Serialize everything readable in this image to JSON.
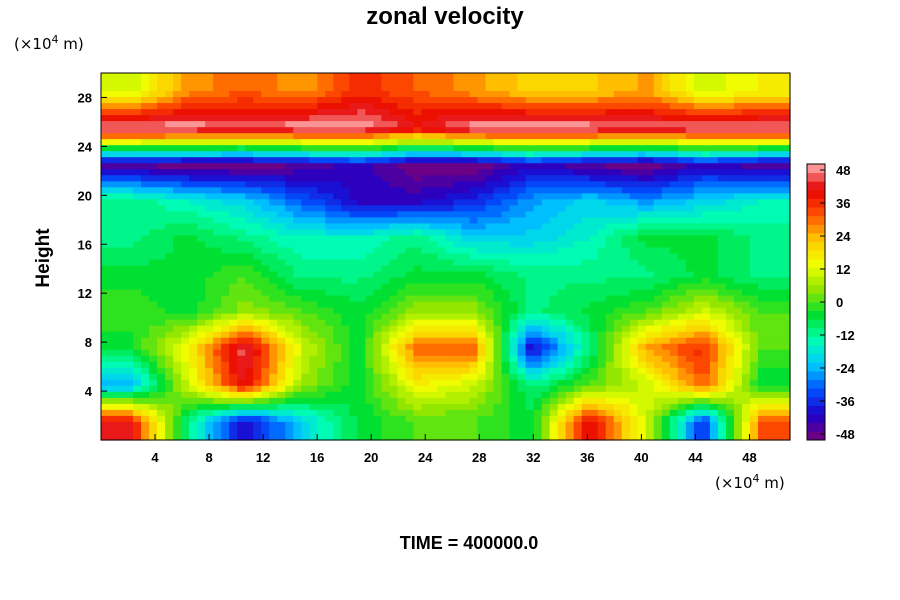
{
  "chart_data": {
    "type": "heatmap",
    "title": "zonal velocity",
    "ylabel": "Height",
    "xlabel": "",
    "x_unit": {
      "prefix": "(×10",
      "exp": "4",
      "suffix": " m)"
    },
    "y_unit": {
      "prefix": "(×10",
      "exp": "4",
      "suffix": " m)"
    },
    "xlim": [
      0,
      51
    ],
    "ylim": [
      0,
      30
    ],
    "x_ticks": [
      4,
      8,
      12,
      16,
      20,
      24,
      28,
      32,
      36,
      40,
      44,
      48
    ],
    "y_ticks": [
      4,
      8,
      12,
      16,
      20,
      24,
      28
    ],
    "colorbar": {
      "min": -48,
      "max": 48,
      "ticks": [
        48,
        36,
        24,
        12,
        0,
        -12,
        -24,
        -36,
        -48
      ],
      "levels": 32,
      "colors": [
        "#7a007a",
        "#2000c8",
        "#0050ff",
        "#00c8ff",
        "#00ffb0",
        "#00e030",
        "#90e600",
        "#f0ff00",
        "#ffc800",
        "#ff5000",
        "#e60000",
        "#ffb4b4"
      ]
    },
    "field": {
      "x_centers": [
        2.1,
        6.4,
        10.6,
        14.9,
        19.1,
        23.4,
        27.6,
        31.9,
        36.1,
        40.4,
        44.6,
        48.9
      ],
      "y_centers": [
        1.5,
        4.5,
        7.5,
        10.5,
        13.5,
        16.5,
        19.5,
        22.5,
        25.5,
        28.5
      ],
      "values": [
        [
          40,
          -10,
          -40,
          -20,
          -5,
          0,
          0,
          -5,
          40,
          10,
          -35,
          30
        ],
        [
          -25,
          10,
          40,
          5,
          -5,
          15,
          10,
          -10,
          0,
          10,
          30,
          -5
        ],
        [
          -5,
          15,
          45,
          10,
          -5,
          30,
          30,
          -40,
          -10,
          25,
          35,
          0
        ],
        [
          0,
          -5,
          5,
          0,
          -5,
          5,
          5,
          -10,
          -5,
          0,
          10,
          0
        ],
        [
          -5,
          -5,
          0,
          -10,
          -10,
          -5,
          -5,
          -10,
          -10,
          -10,
          -5,
          -10
        ],
        [
          -10,
          -5,
          -10,
          -15,
          -15,
          -10,
          -20,
          -20,
          -15,
          -5,
          -5,
          -10
        ],
        [
          -10,
          -15,
          -20,
          -30,
          -40,
          -40,
          -35,
          -25,
          -20,
          -25,
          -20,
          -15
        ],
        [
          -45,
          -48,
          -48,
          -45,
          -40,
          -48,
          -48,
          -40,
          -45,
          -48,
          -40,
          -45
        ],
        [
          48,
          48,
          45,
          48,
          48,
          40,
          48,
          48,
          48,
          45,
          48,
          48
        ],
        [
          10,
          25,
          30,
          25,
          35,
          30,
          25,
          20,
          20,
          25,
          10,
          15
        ]
      ]
    }
  },
  "footer": {
    "time_label": "TIME = 400000.0"
  }
}
